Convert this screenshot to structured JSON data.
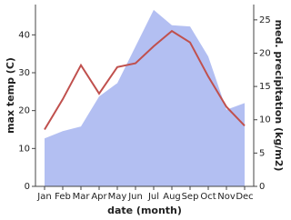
{
  "chart_data": {
    "type": "line-area",
    "x_label": "date (month)",
    "y_label": "max temp (C)",
    "y2_label": "med. precipitation (kg/m2)",
    "categories": [
      "Jan",
      "Feb",
      "Mar",
      "Apr",
      "May",
      "Jun",
      "Jul",
      "Aug",
      "Sep",
      "Oct",
      "Nov",
      "Dec"
    ],
    "series": [
      {
        "name": "max temp",
        "color": "#c0504d",
        "values": [
          15,
          23,
          32,
          24.5,
          31.5,
          32.5,
          37,
          41,
          38,
          29,
          21,
          16
        ]
      },
      {
        "name": "med. precipitation",
        "color": "#b3bff2",
        "axis": "y2",
        "values": [
          7.2,
          8.3,
          9,
          13.5,
          15.5,
          21,
          26.5,
          24.2,
          24,
          19.5,
          11.5,
          12.5
        ]
      }
    ],
    "ylim": [
      0,
      48
    ],
    "yticks": [
      0,
      10,
      20,
      30,
      40
    ],
    "y2lim": [
      0,
      27.3
    ],
    "y2ticks": [
      0,
      5,
      10,
      15,
      20,
      25
    ]
  }
}
